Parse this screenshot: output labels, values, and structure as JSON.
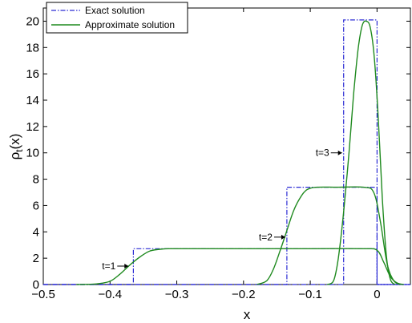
{
  "chart_data": {
    "type": "line",
    "xlabel": "x",
    "ylabel_main": "ρ",
    "ylabel_sub": "t",
    "ylabel_rest": "(x)",
    "xlim": [
      -0.5,
      0.05
    ],
    "ylim": [
      0,
      21
    ],
    "x_ticks": [
      -0.5,
      -0.4,
      -0.3,
      -0.2,
      -0.1,
      0
    ],
    "x_tick_labels": [
      "−0.5",
      "−0.4",
      "−0.3",
      "−0.2",
      "−0.1",
      "0"
    ],
    "y_ticks": [
      0,
      2,
      4,
      6,
      8,
      10,
      12,
      14,
      16,
      18,
      20
    ],
    "y_tick_labels": [
      "0",
      "2",
      "4",
      "6",
      "8",
      "10",
      "12",
      "14",
      "16",
      "18",
      "20"
    ],
    "grid": false,
    "legend": {
      "position": "top-left",
      "entries": [
        {
          "label": "Exact solution",
          "color": "#2b2bd4",
          "dash": "dash-dot"
        },
        {
          "label": "Approximate solution",
          "color": "#1f8a1f",
          "dash": "solid"
        }
      ]
    },
    "series": [
      {
        "name": "Exact solution",
        "color": "#2b2bd4",
        "style": "dash-dot",
        "curves": [
          {
            "time": "t=1",
            "x": [
              -0.5,
              -0.365,
              -0.365,
              0.0,
              0.0,
              0.05
            ],
            "y": [
              0,
              0,
              2.72,
              2.72,
              0,
              0
            ]
          },
          {
            "time": "t=2",
            "x": [
              -0.5,
              -0.135,
              -0.135,
              0.0,
              0.0,
              0.05
            ],
            "y": [
              0,
              0,
              7.39,
              7.39,
              0,
              0
            ]
          },
          {
            "time": "t=3",
            "x": [
              -0.5,
              -0.05,
              -0.05,
              0.0,
              0.0,
              0.05
            ],
            "y": [
              0,
              0,
              20.09,
              20.09,
              0,
              0
            ]
          }
        ]
      },
      {
        "name": "Approximate solution",
        "color": "#1f8a1f",
        "style": "solid",
        "curves": [
          {
            "time": "t=1",
            "x": [
              -0.45,
              -0.42,
              -0.4,
              -0.385,
              -0.37,
              -0.355,
              -0.34,
              -0.32,
              -0.3,
              -0.2,
              -0.1,
              -0.02,
              0.0,
              0.01,
              0.02,
              0.03,
              0.04
            ],
            "y": [
              0,
              0.05,
              0.25,
              0.8,
              1.5,
              2.1,
              2.55,
              2.7,
              2.72,
              2.72,
              2.72,
              2.72,
              2.6,
              1.7,
              0.6,
              0.12,
              0
            ]
          },
          {
            "time": "t=2",
            "x": [
              -0.18,
              -0.165,
              -0.155,
              -0.145,
              -0.135,
              -0.125,
              -0.115,
              -0.105,
              -0.09,
              -0.06,
              -0.02,
              -0.005,
              0.005,
              0.015,
              0.025,
              0.035
            ],
            "y": [
              0,
              0.3,
              1.2,
              2.6,
              4.1,
              5.6,
              6.6,
              7.2,
              7.39,
              7.39,
              7.39,
              7.0,
              4.8,
              1.6,
              0.3,
              0
            ]
          },
          {
            "time": "t=3",
            "x": [
              -0.075,
              -0.065,
              -0.058,
              -0.05,
              -0.042,
              -0.035,
              -0.028,
              -0.022,
              -0.016,
              -0.01,
              -0.004,
              0.002,
              0.008,
              0.014,
              0.02,
              0.027
            ],
            "y": [
              0,
              0.3,
              2.0,
              5.5,
              10.0,
              14.5,
              18.0,
              19.7,
              20.0,
              19.5,
              17.2,
              12.5,
              6.5,
              2.2,
              0.4,
              0
            ]
          }
        ]
      }
    ],
    "annotations": [
      {
        "text": "t=1",
        "x": -0.37,
        "y": 1.4
      },
      {
        "text": "t=2",
        "x": -0.135,
        "y": 3.6
      },
      {
        "text": "t=3",
        "x": -0.05,
        "y": 10.0
      }
    ]
  }
}
